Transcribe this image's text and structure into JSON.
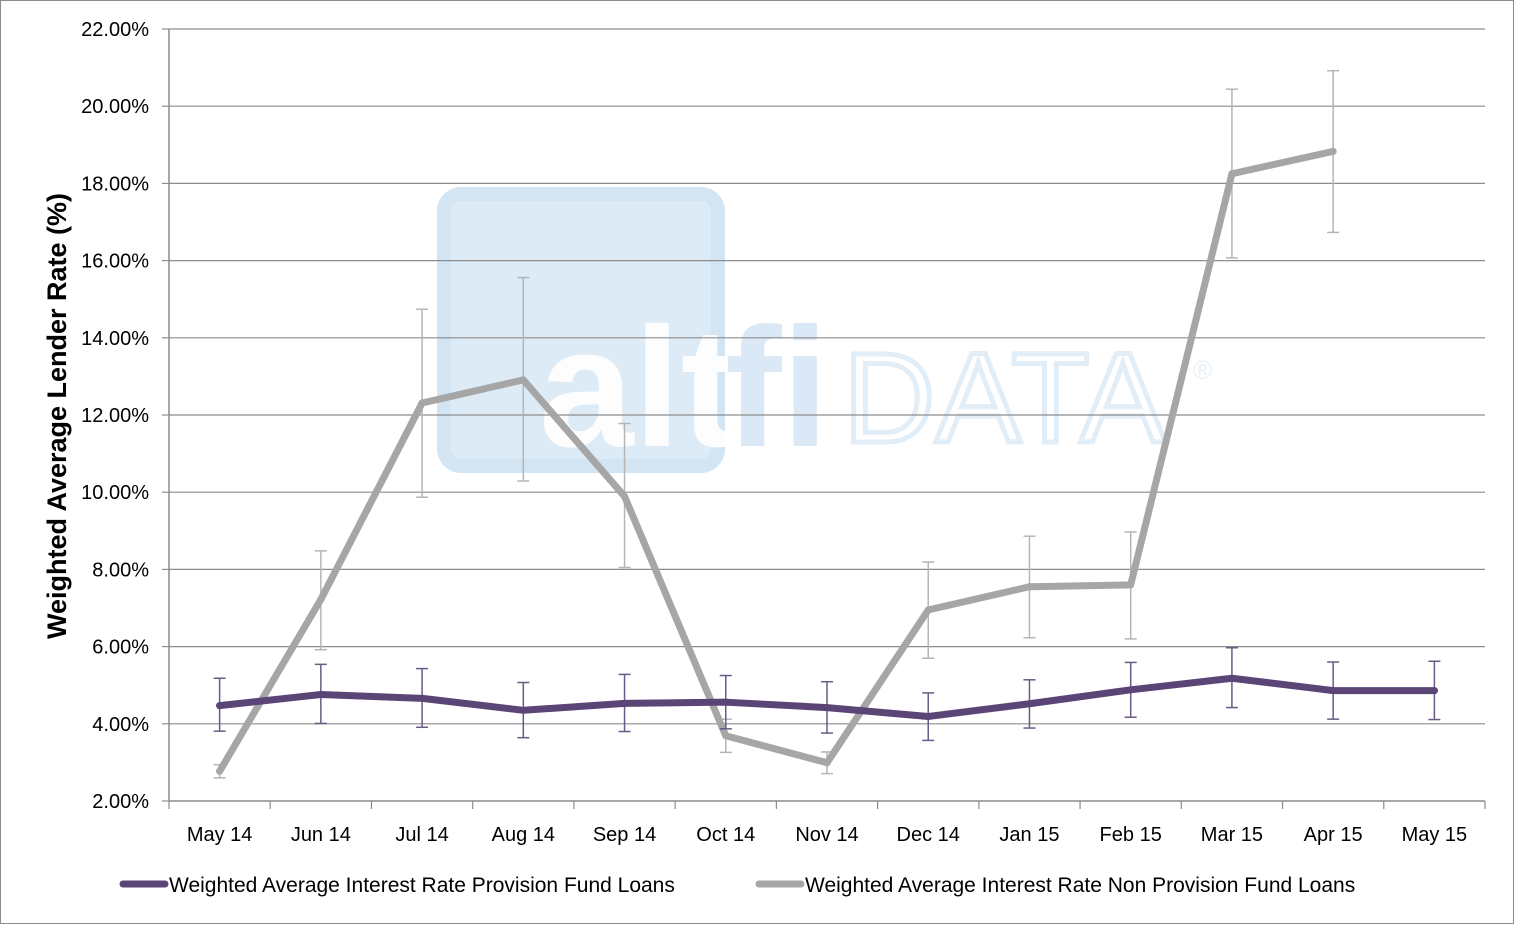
{
  "watermark": {
    "word1": "alt",
    "word2": "fi",
    "word3": "DATA",
    "mark": "®"
  },
  "chart_data": {
    "type": "line",
    "title": "",
    "xlabel": "",
    "ylabel": "Weighted Average Lender Rate (%)",
    "categories": [
      "May 14",
      "Jun 14",
      "Jul 14",
      "Aug 14",
      "Sep 14",
      "Oct 14",
      "Nov 14",
      "Dec 14",
      "Jan 15",
      "Feb 15",
      "Mar 15",
      "Apr 15",
      "May 15"
    ],
    "ylim": [
      2,
      22
    ],
    "yticks": [
      2,
      4,
      6,
      8,
      10,
      12,
      14,
      16,
      18,
      20,
      22
    ],
    "ytick_labels": [
      "2.00%",
      "4.00%",
      "6.00%",
      "8.00%",
      "10.00%",
      "12.00%",
      "14.00%",
      "16.00%",
      "18.00%",
      "20.00%",
      "22.00%"
    ],
    "grid": true,
    "legend_position": "bottom",
    "series": [
      {
        "name": "Weighted Average Interest Rate Provision Fund Loans",
        "color": "#5b4577",
        "values": [
          4.47,
          4.76,
          4.66,
          4.35,
          4.53,
          4.56,
          4.42,
          4.19,
          4.52,
          4.88,
          5.18,
          4.86,
          4.86
        ],
        "err_low": [
          3.81,
          4.01,
          3.91,
          3.64,
          3.8,
          3.87,
          3.76,
          3.57,
          3.89,
          4.17,
          4.42,
          4.12,
          4.11
        ],
        "err_high": [
          5.18,
          5.54,
          5.43,
          5.07,
          5.28,
          5.25,
          5.09,
          4.8,
          5.14,
          5.59,
          5.97,
          5.6,
          5.62
        ]
      },
      {
        "name": "Weighted Average Interest Rate Non Provision Fund Loans",
        "color": "#a6a6a6",
        "values": [
          2.77,
          7.22,
          12.31,
          12.91,
          9.89,
          3.69,
          2.99,
          6.95,
          7.55,
          7.6,
          18.25,
          18.83,
          null
        ],
        "err_low": [
          2.6,
          5.92,
          9.87,
          10.29,
          8.05,
          3.26,
          2.71,
          5.7,
          6.23,
          6.2,
          16.07,
          16.73,
          null
        ],
        "err_high": [
          2.94,
          8.48,
          14.74,
          15.56,
          11.78,
          4.12,
          3.27,
          8.19,
          8.86,
          8.97,
          20.44,
          20.92,
          null
        ]
      }
    ]
  }
}
